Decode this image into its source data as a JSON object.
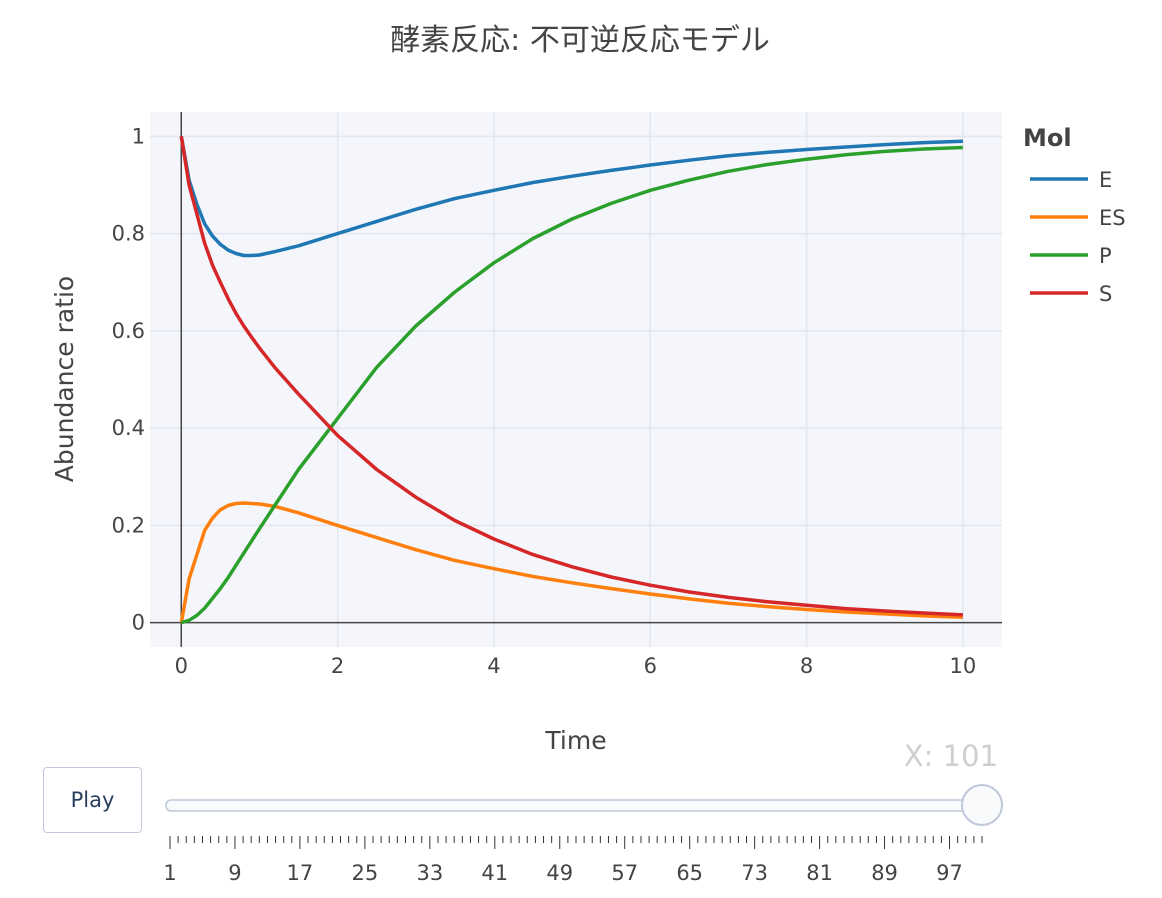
{
  "chart_data": {
    "type": "line",
    "title": "酵素反応: 不可逆反応モデル",
    "xlabel": "Time",
    "ylabel": "Abundance ratio",
    "xlim": [
      -0.4,
      10.5
    ],
    "ylim": [
      -0.05,
      1.05
    ],
    "x_ticks": [
      0,
      2,
      4,
      6,
      8,
      10
    ],
    "y_ticks": [
      0,
      0.2,
      0.4,
      0.6,
      0.8,
      1
    ],
    "y_tick_labels": [
      "0",
      "0.2",
      "0.4",
      "0.6",
      "0.8",
      "1"
    ],
    "grid": true,
    "legend_title": "Mol",
    "legend_position": "right",
    "series": [
      {
        "name": "E",
        "color": "#1f77b4",
        "x": [
          0,
          0.1,
          0.2,
          0.3,
          0.4,
          0.5,
          0.6,
          0.7,
          0.8,
          0.9,
          1.0,
          1.2,
          1.5,
          2,
          2.5,
          3,
          3.5,
          4,
          4.5,
          5,
          5.5,
          6,
          6.5,
          7,
          7.5,
          8,
          8.5,
          9,
          9.5,
          10
        ],
        "y": [
          1.0,
          0.91,
          0.86,
          0.82,
          0.795,
          0.778,
          0.766,
          0.759,
          0.755,
          0.755,
          0.756,
          0.763,
          0.775,
          0.8,
          0.825,
          0.85,
          0.872,
          0.889,
          0.905,
          0.918,
          0.93,
          0.941,
          0.951,
          0.96,
          0.967,
          0.973,
          0.978,
          0.983,
          0.987,
          0.99
        ]
      },
      {
        "name": "ES",
        "color": "#ff7f0e",
        "x": [
          0,
          0.1,
          0.2,
          0.3,
          0.4,
          0.5,
          0.6,
          0.7,
          0.8,
          0.9,
          1.0,
          1.2,
          1.5,
          2,
          2.5,
          3,
          3.5,
          4,
          4.5,
          5,
          5.5,
          6,
          6.5,
          7,
          7.5,
          8,
          8.5,
          9,
          9.5,
          10
        ],
        "y": [
          0.0,
          0.09,
          0.14,
          0.19,
          0.215,
          0.232,
          0.241,
          0.245,
          0.246,
          0.245,
          0.244,
          0.239,
          0.226,
          0.2,
          0.175,
          0.15,
          0.128,
          0.111,
          0.095,
          0.082,
          0.07,
          0.059,
          0.049,
          0.04,
          0.033,
          0.027,
          0.022,
          0.018,
          0.014,
          0.011
        ]
      },
      {
        "name": "P",
        "color": "#2ca02c",
        "x": [
          0,
          0.1,
          0.2,
          0.3,
          0.4,
          0.5,
          0.6,
          0.7,
          0.8,
          0.9,
          1.0,
          1.2,
          1.5,
          2,
          2.5,
          3,
          3.5,
          4,
          4.5,
          5,
          5.5,
          6,
          6.5,
          7,
          7.5,
          8,
          8.5,
          9,
          9.5,
          10
        ],
        "y": [
          0.0,
          0.005,
          0.015,
          0.03,
          0.05,
          0.07,
          0.093,
          0.118,
          0.143,
          0.168,
          0.193,
          0.242,
          0.315,
          0.42,
          0.525,
          0.61,
          0.68,
          0.74,
          0.79,
          0.83,
          0.862,
          0.889,
          0.91,
          0.928,
          0.942,
          0.953,
          0.962,
          0.969,
          0.974,
          0.977
        ]
      },
      {
        "name": "S",
        "color": "#d62728",
        "x": [
          0,
          0.1,
          0.2,
          0.3,
          0.4,
          0.5,
          0.6,
          0.7,
          0.8,
          0.9,
          1.0,
          1.2,
          1.5,
          2,
          2.5,
          3,
          3.5,
          4,
          4.5,
          5,
          5.5,
          6,
          6.5,
          7,
          7.5,
          8,
          8.5,
          9,
          9.5,
          10
        ],
        "y": [
          1.0,
          0.9,
          0.84,
          0.78,
          0.735,
          0.7,
          0.666,
          0.636,
          0.61,
          0.587,
          0.565,
          0.524,
          0.47,
          0.385,
          0.315,
          0.258,
          0.21,
          0.172,
          0.14,
          0.115,
          0.094,
          0.077,
          0.063,
          0.052,
          0.043,
          0.036,
          0.029,
          0.024,
          0.02,
          0.016
        ]
      }
    ]
  },
  "controls": {
    "play_label": "Play",
    "slider_prefix": "X: ",
    "slider_value": "101",
    "slider_min": 1,
    "slider_max": 101,
    "slider_current": 101,
    "slider_tick_labels": [
      "1",
      "9",
      "17",
      "25",
      "33",
      "41",
      "49",
      "57",
      "65",
      "73",
      "81",
      "89",
      "97"
    ]
  }
}
